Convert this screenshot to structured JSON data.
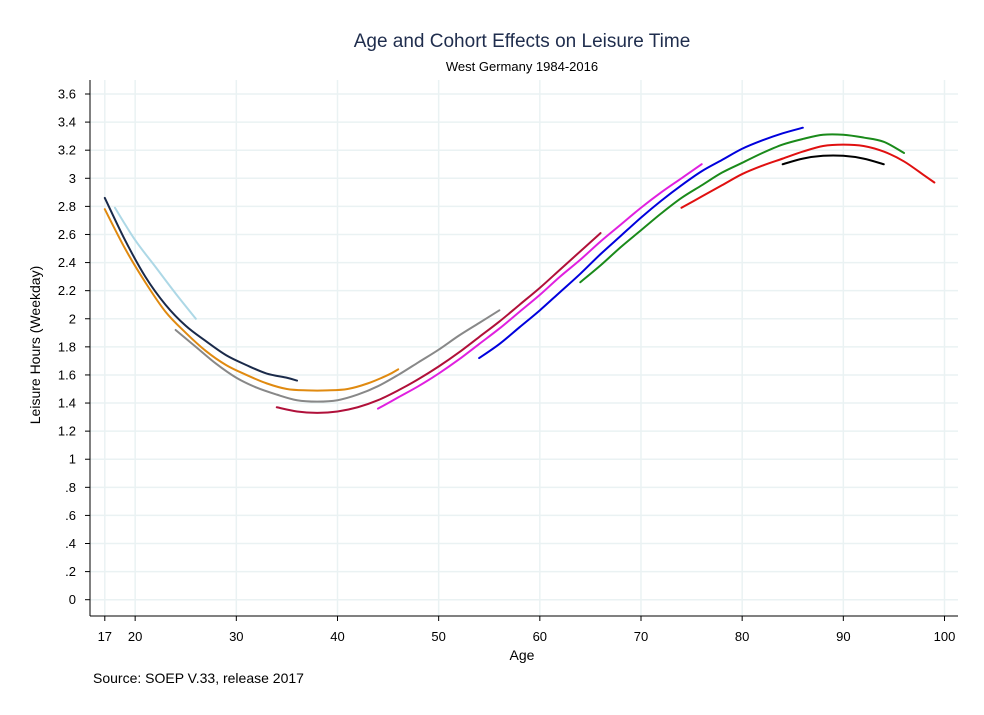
{
  "chart_data": {
    "type": "line",
    "title": "Age and Cohort Effects on Leisure Time",
    "subtitle": "West Germany 1984-2016",
    "xlabel": "Age",
    "ylabel": "Leisure Hours (Weekday)",
    "note": "Source: SOEP V.33, release 2017",
    "xlim": [
      17,
      100
    ],
    "ylim": [
      0,
      3.6
    ],
    "xticks": [
      17,
      20,
      30,
      40,
      50,
      60,
      70,
      80,
      90,
      100
    ],
    "xtick_labels": [
      "17",
      "20",
      "30",
      "40",
      "50",
      "60",
      "70",
      "80",
      "90",
      "100"
    ],
    "yticks": [
      0,
      0.2,
      0.4,
      0.6,
      0.8,
      1,
      1.2,
      1.4,
      1.6,
      1.8,
      2,
      2.2,
      2.4,
      2.6,
      2.8,
      3,
      3.2,
      3.4,
      3.6
    ],
    "ytick_labels": [
      "0",
      ".2",
      ".4",
      ".6",
      ".8",
      "1",
      "1.2",
      "1.4",
      "1.6",
      "1.8",
      "2",
      "2.2",
      "2.4",
      "2.6",
      "2.8",
      "3",
      "3.2",
      "3.4",
      "3.6"
    ],
    "grid": true,
    "series": [
      {
        "color": "#add8e6",
        "points": [
          [
            18,
            2.79
          ],
          [
            20,
            2.56
          ],
          [
            22,
            2.37
          ],
          [
            24,
            2.18
          ],
          [
            26,
            2.0
          ]
        ]
      },
      {
        "color": "#1a2a4a",
        "points": [
          [
            17,
            2.86
          ],
          [
            19,
            2.56
          ],
          [
            21,
            2.3
          ],
          [
            23,
            2.1
          ],
          [
            25,
            1.95
          ],
          [
            27,
            1.84
          ],
          [
            29,
            1.74
          ],
          [
            31,
            1.67
          ],
          [
            33,
            1.61
          ],
          [
            35,
            1.58
          ],
          [
            36,
            1.56
          ]
        ]
      },
      {
        "color": "#e08a10",
        "points": [
          [
            17,
            2.78
          ],
          [
            19,
            2.5
          ],
          [
            21,
            2.26
          ],
          [
            23,
            2.05
          ],
          [
            25,
            1.9
          ],
          [
            27,
            1.77
          ],
          [
            29,
            1.67
          ],
          [
            31,
            1.6
          ],
          [
            33,
            1.54
          ],
          [
            35,
            1.5
          ],
          [
            37,
            1.49
          ],
          [
            39,
            1.49
          ],
          [
            41,
            1.5
          ],
          [
            43,
            1.54
          ],
          [
            45,
            1.6
          ],
          [
            46,
            1.64
          ]
        ]
      },
      {
        "color": "#888888",
        "points": [
          [
            24,
            1.92
          ],
          [
            26,
            1.8
          ],
          [
            28,
            1.68
          ],
          [
            30,
            1.58
          ],
          [
            32,
            1.51
          ],
          [
            34,
            1.46
          ],
          [
            36,
            1.42
          ],
          [
            38,
            1.41
          ],
          [
            40,
            1.42
          ],
          [
            42,
            1.46
          ],
          [
            44,
            1.52
          ],
          [
            46,
            1.6
          ],
          [
            48,
            1.69
          ],
          [
            50,
            1.78
          ],
          [
            52,
            1.88
          ],
          [
            54,
            1.97
          ],
          [
            56,
            2.06
          ]
        ]
      },
      {
        "color": "#b0103a",
        "points": [
          [
            34,
            1.37
          ],
          [
            36,
            1.34
          ],
          [
            38,
            1.33
          ],
          [
            40,
            1.34
          ],
          [
            42,
            1.37
          ],
          [
            44,
            1.42
          ],
          [
            46,
            1.49
          ],
          [
            48,
            1.57
          ],
          [
            50,
            1.66
          ],
          [
            52,
            1.76
          ],
          [
            54,
            1.87
          ],
          [
            56,
            1.98
          ],
          [
            58,
            2.1
          ],
          [
            60,
            2.22
          ],
          [
            62,
            2.35
          ],
          [
            64,
            2.48
          ],
          [
            66,
            2.61
          ]
        ]
      },
      {
        "color": "#e020e0",
        "points": [
          [
            44,
            1.36
          ],
          [
            46,
            1.44
          ],
          [
            48,
            1.52
          ],
          [
            50,
            1.61
          ],
          [
            52,
            1.71
          ],
          [
            54,
            1.82
          ],
          [
            56,
            1.93
          ],
          [
            58,
            2.05
          ],
          [
            60,
            2.17
          ],
          [
            62,
            2.3
          ],
          [
            64,
            2.42
          ],
          [
            66,
            2.55
          ],
          [
            68,
            2.67
          ],
          [
            70,
            2.79
          ],
          [
            72,
            2.9
          ],
          [
            74,
            3.0
          ],
          [
            76,
            3.1
          ]
        ]
      },
      {
        "color": "#0000dd",
        "points": [
          [
            54,
            1.72
          ],
          [
            56,
            1.82
          ],
          [
            58,
            1.94
          ],
          [
            60,
            2.06
          ],
          [
            62,
            2.19
          ],
          [
            64,
            2.32
          ],
          [
            66,
            2.46
          ],
          [
            68,
            2.59
          ],
          [
            70,
            2.72
          ],
          [
            72,
            2.84
          ],
          [
            74,
            2.95
          ],
          [
            76,
            3.05
          ],
          [
            78,
            3.13
          ],
          [
            80,
            3.21
          ],
          [
            82,
            3.27
          ],
          [
            84,
            3.32
          ],
          [
            86,
            3.36
          ]
        ]
      },
      {
        "color": "#1a8a1a",
        "points": [
          [
            64,
            2.26
          ],
          [
            66,
            2.38
          ],
          [
            68,
            2.51
          ],
          [
            70,
            2.63
          ],
          [
            72,
            2.75
          ],
          [
            74,
            2.86
          ],
          [
            76,
            2.95
          ],
          [
            78,
            3.04
          ],
          [
            80,
            3.11
          ],
          [
            82,
            3.18
          ],
          [
            84,
            3.24
          ],
          [
            86,
            3.28
          ],
          [
            88,
            3.31
          ],
          [
            90,
            3.31
          ],
          [
            92,
            3.29
          ],
          [
            94,
            3.26
          ],
          [
            96,
            3.18
          ]
        ]
      },
      {
        "color": "#e01010",
        "points": [
          [
            74,
            2.79
          ],
          [
            76,
            2.87
          ],
          [
            78,
            2.95
          ],
          [
            80,
            3.03
          ],
          [
            82,
            3.09
          ],
          [
            84,
            3.14
          ],
          [
            86,
            3.19
          ],
          [
            88,
            3.23
          ],
          [
            90,
            3.24
          ],
          [
            92,
            3.23
          ],
          [
            94,
            3.19
          ],
          [
            96,
            3.12
          ],
          [
            98,
            3.02
          ],
          [
            99,
            2.97
          ]
        ]
      },
      {
        "color": "#000000",
        "points": [
          [
            84,
            3.1
          ],
          [
            86,
            3.14
          ],
          [
            88,
            3.16
          ],
          [
            90,
            3.16
          ],
          [
            92,
            3.14
          ],
          [
            94,
            3.1
          ]
        ]
      }
    ]
  }
}
